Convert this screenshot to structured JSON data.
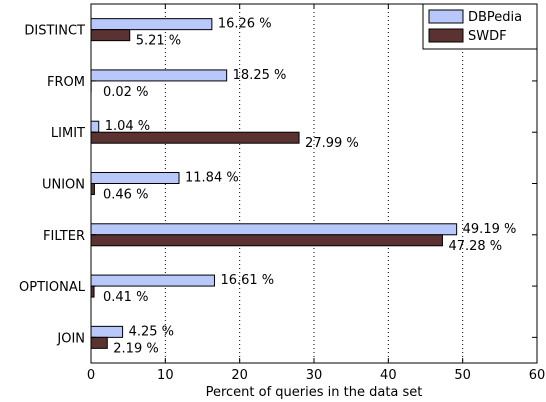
{
  "chart_data": {
    "type": "bar",
    "orientation": "horizontal",
    "categories": [
      "DISTINCT",
      "FROM",
      "LIMIT",
      "UNION",
      "FILTER",
      "OPTIONAL",
      "JOIN"
    ],
    "series": [
      {
        "name": "DBPedia",
        "color": "#b8c8fa",
        "values": [
          16.26,
          18.25,
          1.04,
          11.84,
          49.19,
          16.61,
          4.25
        ],
        "labels": [
          "16.26 %",
          "18.25 %",
          "1.04 %",
          "11.84 %",
          "49.19 %",
          "16.61 %",
          "4.25 %"
        ]
      },
      {
        "name": "SWDF",
        "color": "#5a3232",
        "values": [
          5.21,
          0.02,
          27.99,
          0.46,
          47.28,
          0.41,
          2.19
        ],
        "labels": [
          "5.21 %",
          "0.02 %",
          "27.99 %",
          "0.46 %",
          "47.28 %",
          "0.41 %",
          "2.19 %"
        ]
      }
    ],
    "xlabel": "Percent of queries in the data set",
    "ylabel": "",
    "xlim": [
      0,
      60
    ],
    "xticks": [
      "0",
      "10",
      "20",
      "30",
      "40",
      "50",
      "60"
    ],
    "grid": "vertical dotted",
    "legend_position": "top-right"
  }
}
